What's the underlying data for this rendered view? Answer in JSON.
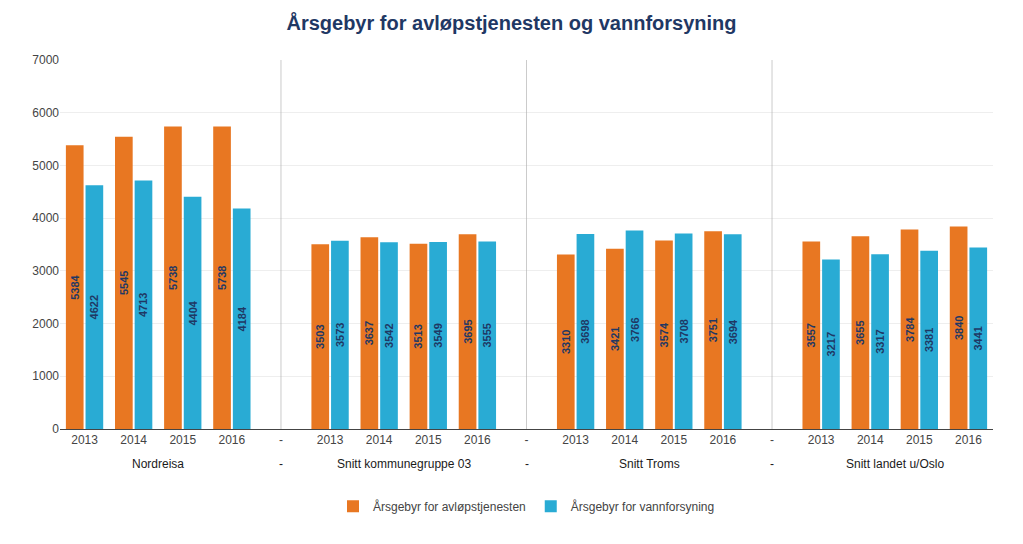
{
  "chart_data": {
    "type": "bar",
    "title": "Årsgebyr for avløpstjenesten og vannforsyning",
    "categories": [
      "2013",
      "2014",
      "2015",
      "2016",
      "-",
      "2013",
      "2014",
      "2015",
      "2016",
      "-",
      "2013",
      "2014",
      "2015",
      "2016",
      "-",
      "2013",
      "2014",
      "2015",
      "2016"
    ],
    "group_labels": [
      "Nordreisa",
      "-",
      "Snitt kommunegruppe 03",
      "-",
      "Snitt Troms",
      "-",
      "Snitt landet u/Oslo"
    ],
    "series": [
      {
        "name": "Årsgebyr for avløpstjenesten",
        "color": "#E87722",
        "values": [
          5384,
          5545,
          5738,
          5738,
          null,
          3503,
          3637,
          3513,
          3695,
          null,
          3310,
          3421,
          3574,
          3751,
          null,
          3557,
          3655,
          3784,
          3840
        ]
      },
      {
        "name": "Årsgebyr for vannforsyning",
        "color": "#29ABD4",
        "values": [
          4622,
          4713,
          4404,
          4184,
          null,
          3573,
          3542,
          3549,
          3555,
          null,
          3698,
          3766,
          3708,
          3694,
          null,
          3217,
          3317,
          3381,
          3441
        ]
      }
    ],
    "ylim": [
      0,
      7000
    ],
    "yticks": [
      0,
      1000,
      2000,
      3000,
      4000,
      5000,
      6000,
      7000
    ],
    "grid": true,
    "legend": "bottom",
    "data_labels": true
  }
}
